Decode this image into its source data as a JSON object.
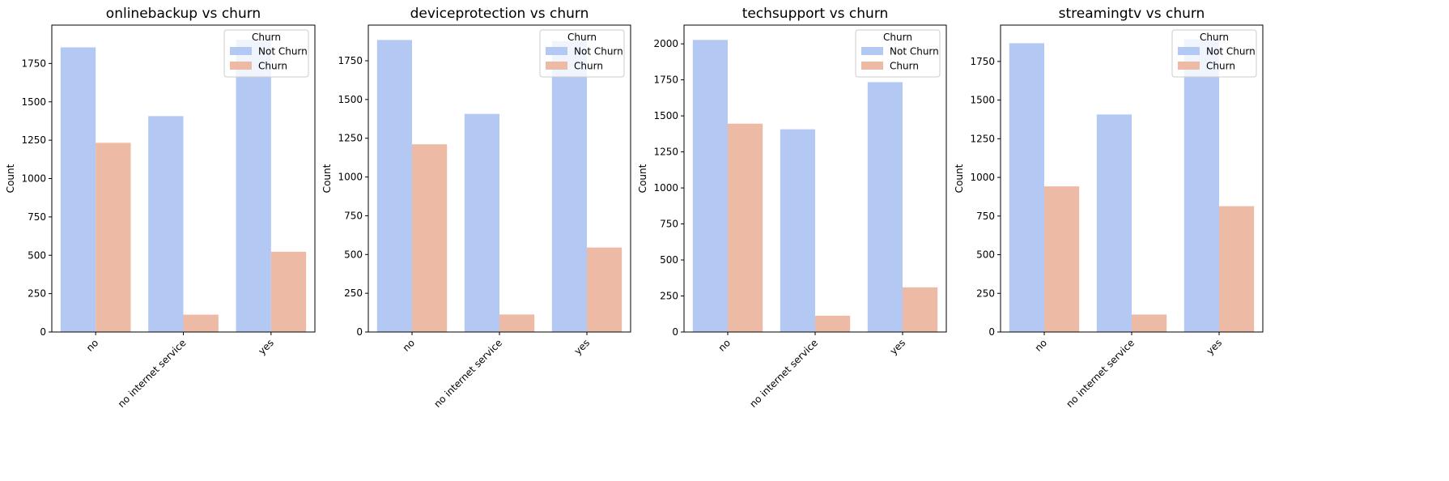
{
  "colors": {
    "not_churn": "#b3c9f4",
    "churn": "#edbba5",
    "axis": "#000000",
    "legend_border": "#cccccc"
  },
  "chart_data": [
    {
      "type": "bar",
      "title": "onlinebackup vs churn",
      "xlabel": "",
      "ylabel": "Count",
      "categories": [
        "no",
        "no internet service",
        "yes"
      ],
      "series": [
        {
          "name": "Not Churn",
          "values": [
            1855,
            1407,
            1905
          ]
        },
        {
          "name": "Churn",
          "values": [
            1233,
            113,
            523
          ]
        }
      ],
      "ylim": [
        0,
        2000
      ],
      "yticks": [
        0,
        250,
        500,
        750,
        1000,
        1250,
        1500,
        1750
      ],
      "ytick_labels": [
        "0",
        "250",
        "500",
        "750",
        "1000",
        "1250",
        "1500",
        "1750"
      ],
      "legend": {
        "title": "Churn",
        "position": "top-right"
      }
    },
    {
      "type": "bar",
      "title": "deviceprotection vs churn",
      "xlabel": "",
      "ylabel": "Count",
      "categories": [
        "no",
        "no internet service",
        "yes"
      ],
      "series": [
        {
          "name": "Not Churn",
          "values": [
            1884,
            1407,
            1877
          ]
        },
        {
          "name": "Churn",
          "values": [
            1211,
            113,
            545
          ]
        }
      ],
      "ylim": [
        0,
        1980
      ],
      "yticks": [
        0,
        250,
        500,
        750,
        1000,
        1250,
        1500,
        1750
      ],
      "ytick_labels": [
        "0",
        "250",
        "500",
        "750",
        "1000",
        "1250",
        "1500",
        "1750"
      ],
      "legend": {
        "title": "Churn",
        "position": "top-right"
      }
    },
    {
      "type": "bar",
      "title": "techsupport vs churn",
      "xlabel": "",
      "ylabel": "Count",
      "categories": [
        "no",
        "no internet service",
        "yes"
      ],
      "series": [
        {
          "name": "Not Churn",
          "values": [
            2027,
            1407,
            1734
          ]
        },
        {
          "name": "Churn",
          "values": [
            1446,
            113,
            310
          ]
        }
      ],
      "ylim": [
        0,
        2130
      ],
      "yticks": [
        0,
        250,
        500,
        750,
        1000,
        1250,
        1500,
        1750,
        2000
      ],
      "ytick_labels": [
        "0",
        "250",
        "500",
        "750",
        "1000",
        "1250",
        "1500",
        "1750",
        "2000"
      ],
      "legend": {
        "title": "Churn",
        "position": "top-right"
      }
    },
    {
      "type": "bar",
      "title": "streamingtv vs churn",
      "xlabel": "",
      "ylabel": "Count",
      "categories": [
        "no",
        "no internet service",
        "yes"
      ],
      "series": [
        {
          "name": "Not Churn",
          "values": [
            1868,
            1407,
            1893
          ]
        },
        {
          "name": "Churn",
          "values": [
            942,
            113,
            814
          ]
        }
      ],
      "ylim": [
        0,
        1985
      ],
      "yticks": [
        0,
        250,
        500,
        750,
        1000,
        1250,
        1500,
        1750
      ],
      "ytick_labels": [
        "0",
        "250",
        "500",
        "750",
        "1000",
        "1250",
        "1500",
        "1750"
      ],
      "legend": {
        "title": "Churn",
        "position": "top-right"
      }
    }
  ]
}
